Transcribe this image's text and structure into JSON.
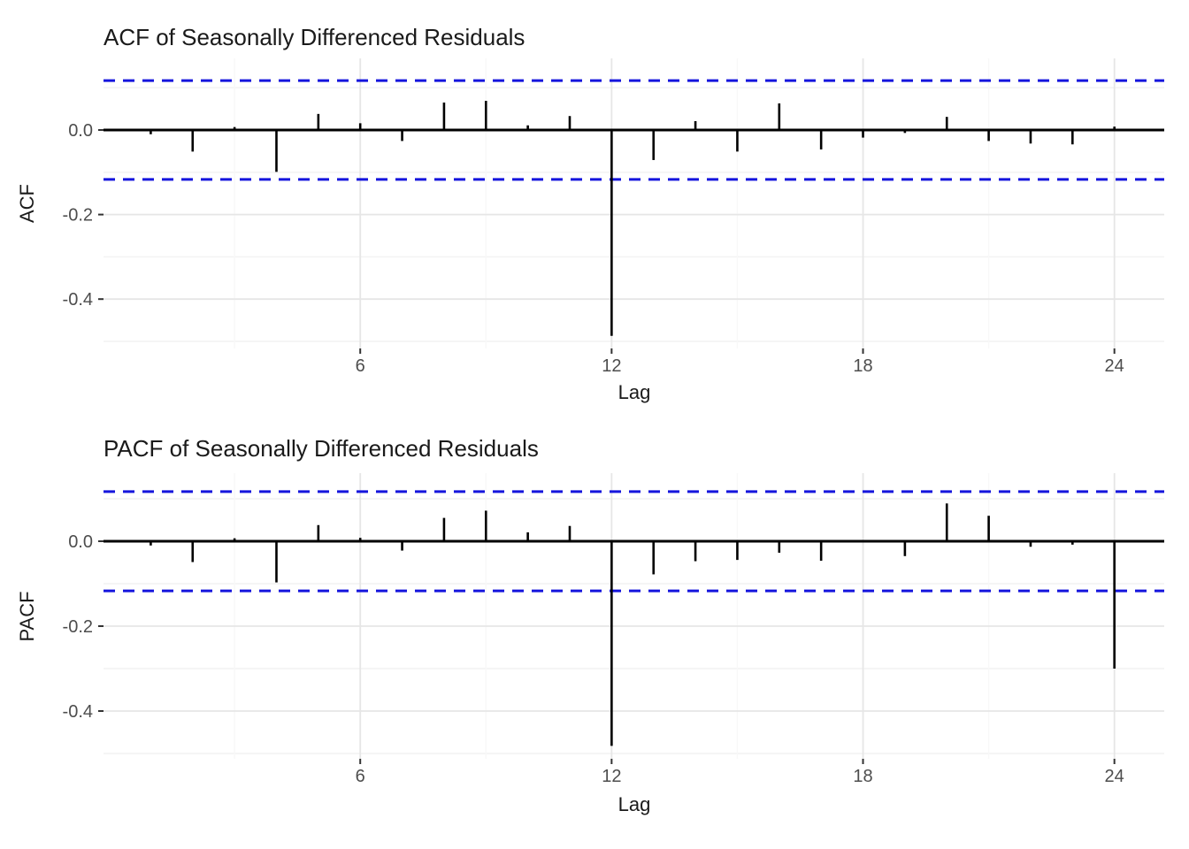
{
  "page": {
    "background": "#FFFFFF"
  },
  "style": {
    "bar_color": "#000000",
    "zero_line_color": "#000000",
    "conf_line_color": "#1515DD",
    "grid_major_color": "#E6E6E6",
    "grid_minor_color": "#F2F2F2",
    "tick_color": "#333333",
    "tick_label_color": "#4D4D4D",
    "title_color": "#1A1A1A"
  },
  "chart_data": [
    {
      "type": "bar",
      "variant": "acf-lollipop",
      "title": "ACF of Seasonally Differenced Residuals",
      "xlabel": "Lag",
      "ylabel": "ACF",
      "x": [
        1,
        2,
        3,
        4,
        5,
        6,
        7,
        8,
        9,
        10,
        11,
        12,
        13,
        14,
        15,
        16,
        17,
        18,
        19,
        20,
        21,
        22,
        23,
        24,
        25
      ],
      "values": [
        -0.01,
        -0.051,
        0.007,
        -0.099,
        0.038,
        0.016,
        -0.026,
        0.065,
        0.069,
        0.011,
        0.033,
        -0.487,
        -0.071,
        0.021,
        -0.051,
        0.063,
        -0.046,
        -0.018,
        -0.007,
        0.031,
        -0.026,
        -0.032,
        -0.034,
        0.008,
        0.0
      ],
      "confidence_bounds": {
        "upper": 0.117,
        "lower": -0.117,
        "line_style": "dashed",
        "color_name": "blue"
      },
      "x_ticks": [
        6,
        12,
        18,
        24
      ],
      "x_tick_labels": [
        "6",
        "12",
        "18",
        "24"
      ],
      "y_ticks": [
        0.0,
        -0.2,
        -0.4
      ],
      "y_tick_labels": [
        "0.0",
        "-0.2",
        "-0.4"
      ],
      "x_minor_gridlines": [
        3,
        9,
        15,
        21
      ],
      "y_minor_gridlines": [
        0.1,
        -0.1,
        -0.3,
        -0.5
      ],
      "ylim": [
        -0.52,
        0.17
      ],
      "xlim": [
        -0.13,
        25.21
      ],
      "grid": true,
      "legend": false
    },
    {
      "type": "bar",
      "variant": "pacf-lollipop",
      "title": "PACF of Seasonally Differenced Residuals",
      "xlabel": "Lag",
      "ylabel": "PACF",
      "x": [
        1,
        2,
        3,
        4,
        5,
        6,
        7,
        8,
        9,
        10,
        11,
        12,
        13,
        14,
        15,
        16,
        17,
        18,
        19,
        20,
        21,
        22,
        23,
        24,
        25
      ],
      "values": [
        -0.01,
        -0.049,
        0.007,
        -0.097,
        0.038,
        0.008,
        -0.022,
        0.055,
        0.072,
        0.021,
        0.036,
        -0.482,
        -0.078,
        -0.047,
        -0.044,
        -0.027,
        -0.046,
        0.0,
        -0.035,
        0.089,
        0.06,
        -0.013,
        -0.008,
        -0.3,
        0.0
      ],
      "confidence_bounds": {
        "upper": 0.117,
        "lower": -0.117,
        "line_style": "dashed",
        "color_name": "blue"
      },
      "x_ticks": [
        6,
        12,
        18,
        24
      ],
      "x_tick_labels": [
        "6",
        "12",
        "18",
        "24"
      ],
      "y_ticks": [
        0.0,
        -0.2,
        -0.4
      ],
      "y_tick_labels": [
        "0.0",
        "-0.2",
        "-0.4"
      ],
      "x_minor_gridlines": [
        3,
        9,
        15,
        21
      ],
      "y_minor_gridlines": [
        0.1,
        -0.1,
        -0.3,
        -0.5
      ],
      "ylim": [
        -0.517,
        0.16
      ],
      "xlim": [
        -0.13,
        25.21
      ],
      "grid": true,
      "legend": false
    }
  ]
}
